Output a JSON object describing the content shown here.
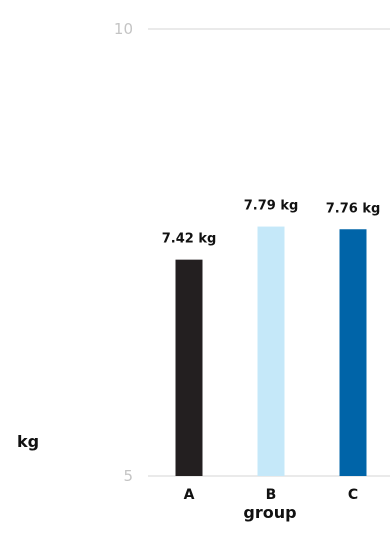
{
  "chart_data": {
    "type": "bar",
    "categories": [
      "A",
      "B",
      "C"
    ],
    "values": [
      7.42,
      7.79,
      7.76
    ],
    "value_labels": [
      "7.42 kg",
      "7.79 kg",
      "7.76 kg"
    ],
    "colors": [
      "#231f20",
      "#c5e8f9",
      "#0064a8"
    ],
    "xlabel": "group",
    "ylabel": "kg",
    "ylim": [
      5,
      10
    ],
    "y_ticks": [
      "5",
      "10"
    ],
    "grid": true
  }
}
